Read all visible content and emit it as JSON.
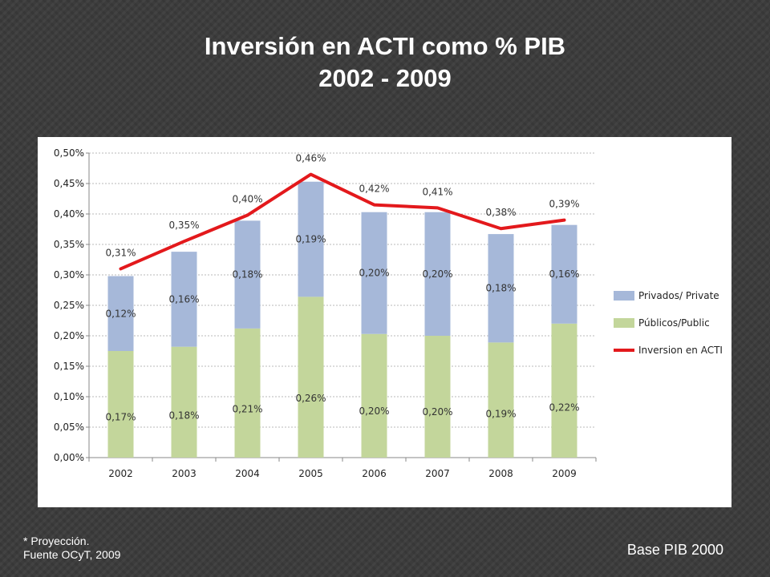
{
  "slide": {
    "title_line1": "Inversión en ACTI como % PIB",
    "title_line2": "2002 - 2009",
    "footnote_line1": "* Proyección.",
    "footnote_line2": "Fuente OCyT, 2009",
    "base_note": "Base PIB 2000"
  },
  "colors": {
    "background": "#3c3c3c",
    "privados": "#a6b8d9",
    "publicos": "#c3d69b",
    "inversion": "#e3191c"
  },
  "chart_data": {
    "type": "bar",
    "stacked": true,
    "categories": [
      "2002",
      "2003",
      "2004",
      "2005",
      "2006",
      "2007",
      "2008",
      "2009"
    ],
    "ylim": [
      0,
      0.5
    ],
    "yticks": [
      "0,00%",
      "0,05%",
      "0,10%",
      "0,15%",
      "0,20%",
      "0,25%",
      "0,30%",
      "0,35%",
      "0,40%",
      "0,45%",
      "0,50%"
    ],
    "grid": true,
    "legend_position": "right",
    "series": [
      {
        "name": "Públicos/Public",
        "kind": "bar",
        "values": [
          0.175,
          0.182,
          0.212,
          0.264,
          0.203,
          0.2,
          0.189,
          0.22
        ],
        "labels": [
          "0,17%",
          "0,18%",
          "0,21%",
          "0,26%",
          "0,20%",
          "0,20%",
          "0,19%",
          "0,22%"
        ]
      },
      {
        "name": "Privados/ Private",
        "kind": "bar",
        "values": [
          0.123,
          0.156,
          0.177,
          0.189,
          0.2,
          0.203,
          0.178,
          0.162
        ],
        "labels": [
          "0,12%",
          "0,16%",
          "0,18%",
          "0,19%",
          "0,20%",
          "0,20%",
          "0,18%",
          "0,16%"
        ]
      },
      {
        "name": "Inversion en ACTI",
        "kind": "line",
        "values": [
          0.31,
          0.355,
          0.398,
          0.465,
          0.415,
          0.41,
          0.376,
          0.39
        ],
        "labels": [
          "0,31%",
          "0,35%",
          "0,40%",
          "0,46%",
          "0,42%",
          "0,41%",
          "0,38%",
          "0,39%"
        ]
      }
    ],
    "legend_order": [
      "Privados/ Private",
      "Públicos/Public",
      "Inversion en ACTI"
    ]
  }
}
